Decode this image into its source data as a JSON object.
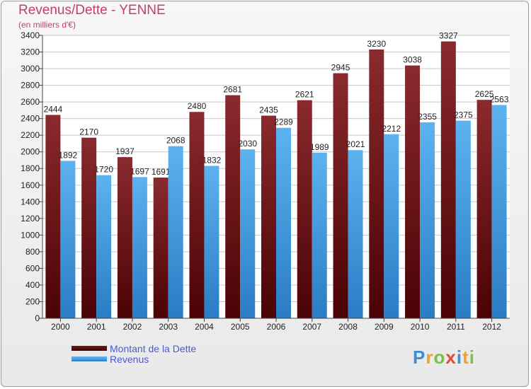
{
  "chart_data": {
    "type": "bar",
    "title": "Revenus/Dette - YENNE",
    "subtitle": "(en milliers d'€)",
    "categories": [
      "2000",
      "2001",
      "2002",
      "2003",
      "2004",
      "2005",
      "2006",
      "2007",
      "2008",
      "2009",
      "2010",
      "2011",
      "2012"
    ],
    "series": [
      {
        "name": "Montant de la Dette",
        "color": "#7a1418",
        "values": [
          2444,
          2170,
          1937,
          1691,
          2480,
          2681,
          2435,
          2621,
          2945,
          3230,
          3038,
          3327,
          2625
        ]
      },
      {
        "name": "Revenus",
        "color": "#4aa3e6",
        "values": [
          1892,
          1720,
          1697,
          2068,
          1832,
          2030,
          2289,
          1989,
          2021,
          2212,
          2355,
          2375,
          2563
        ]
      }
    ],
    "yticks": [
      0,
      200,
      400,
      600,
      800,
      1000,
      1200,
      1400,
      1600,
      1800,
      2000,
      2200,
      2400,
      2600,
      2800,
      3000,
      3200,
      3400
    ],
    "ylim": [
      0,
      3400
    ],
    "xlabel": "",
    "ylabel": "",
    "grid": true,
    "legend": "bottom-left"
  },
  "logo": {
    "text": "Proxiti",
    "letters": [
      "P",
      "r",
      "o",
      "x",
      "i",
      "t",
      "i"
    ]
  }
}
